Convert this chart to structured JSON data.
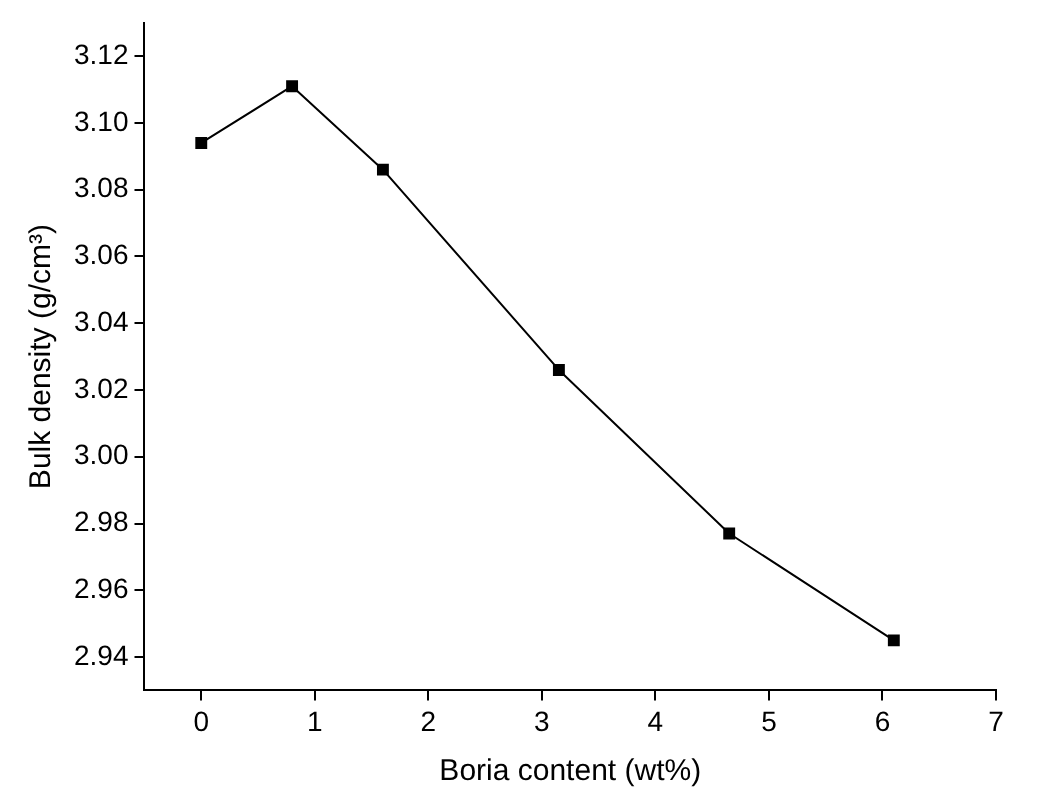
{
  "chart_data": {
    "type": "line",
    "xlabel": "Boria content (wt%)",
    "ylabel": "Bulk density (g/cm³)",
    "x": [
      0,
      0.8,
      1.6,
      3.15,
      4.65,
      6.1
    ],
    "series": [
      {
        "color": "#000000",
        "values": [
          3.094,
          3.111,
          3.086,
          3.026,
          2.977,
          2.945
        ]
      }
    ],
    "xlim": [
      -0.5,
      7
    ],
    "xticks": [
      0,
      1,
      2,
      3,
      4,
      5,
      6,
      7
    ],
    "ylim": [
      2.93,
      3.13
    ],
    "yticks": [
      {
        "value": 2.94,
        "label": "2.94"
      },
      {
        "value": 2.96,
        "label": "2.96"
      },
      {
        "value": 2.98,
        "label": "2.98"
      },
      {
        "value": 3.0,
        "label": "3.00"
      },
      {
        "value": 3.02,
        "label": "3.02"
      },
      {
        "value": 3.04,
        "label": "3.04"
      },
      {
        "value": 3.06,
        "label": "3.06"
      },
      {
        "value": 3.08,
        "label": "3.08"
      },
      {
        "value": 3.1,
        "label": "3.10"
      },
      {
        "value": 3.12,
        "label": "3.12"
      }
    ],
    "grid": false,
    "legend": false,
    "marker": "square",
    "line_style": "solid"
  }
}
